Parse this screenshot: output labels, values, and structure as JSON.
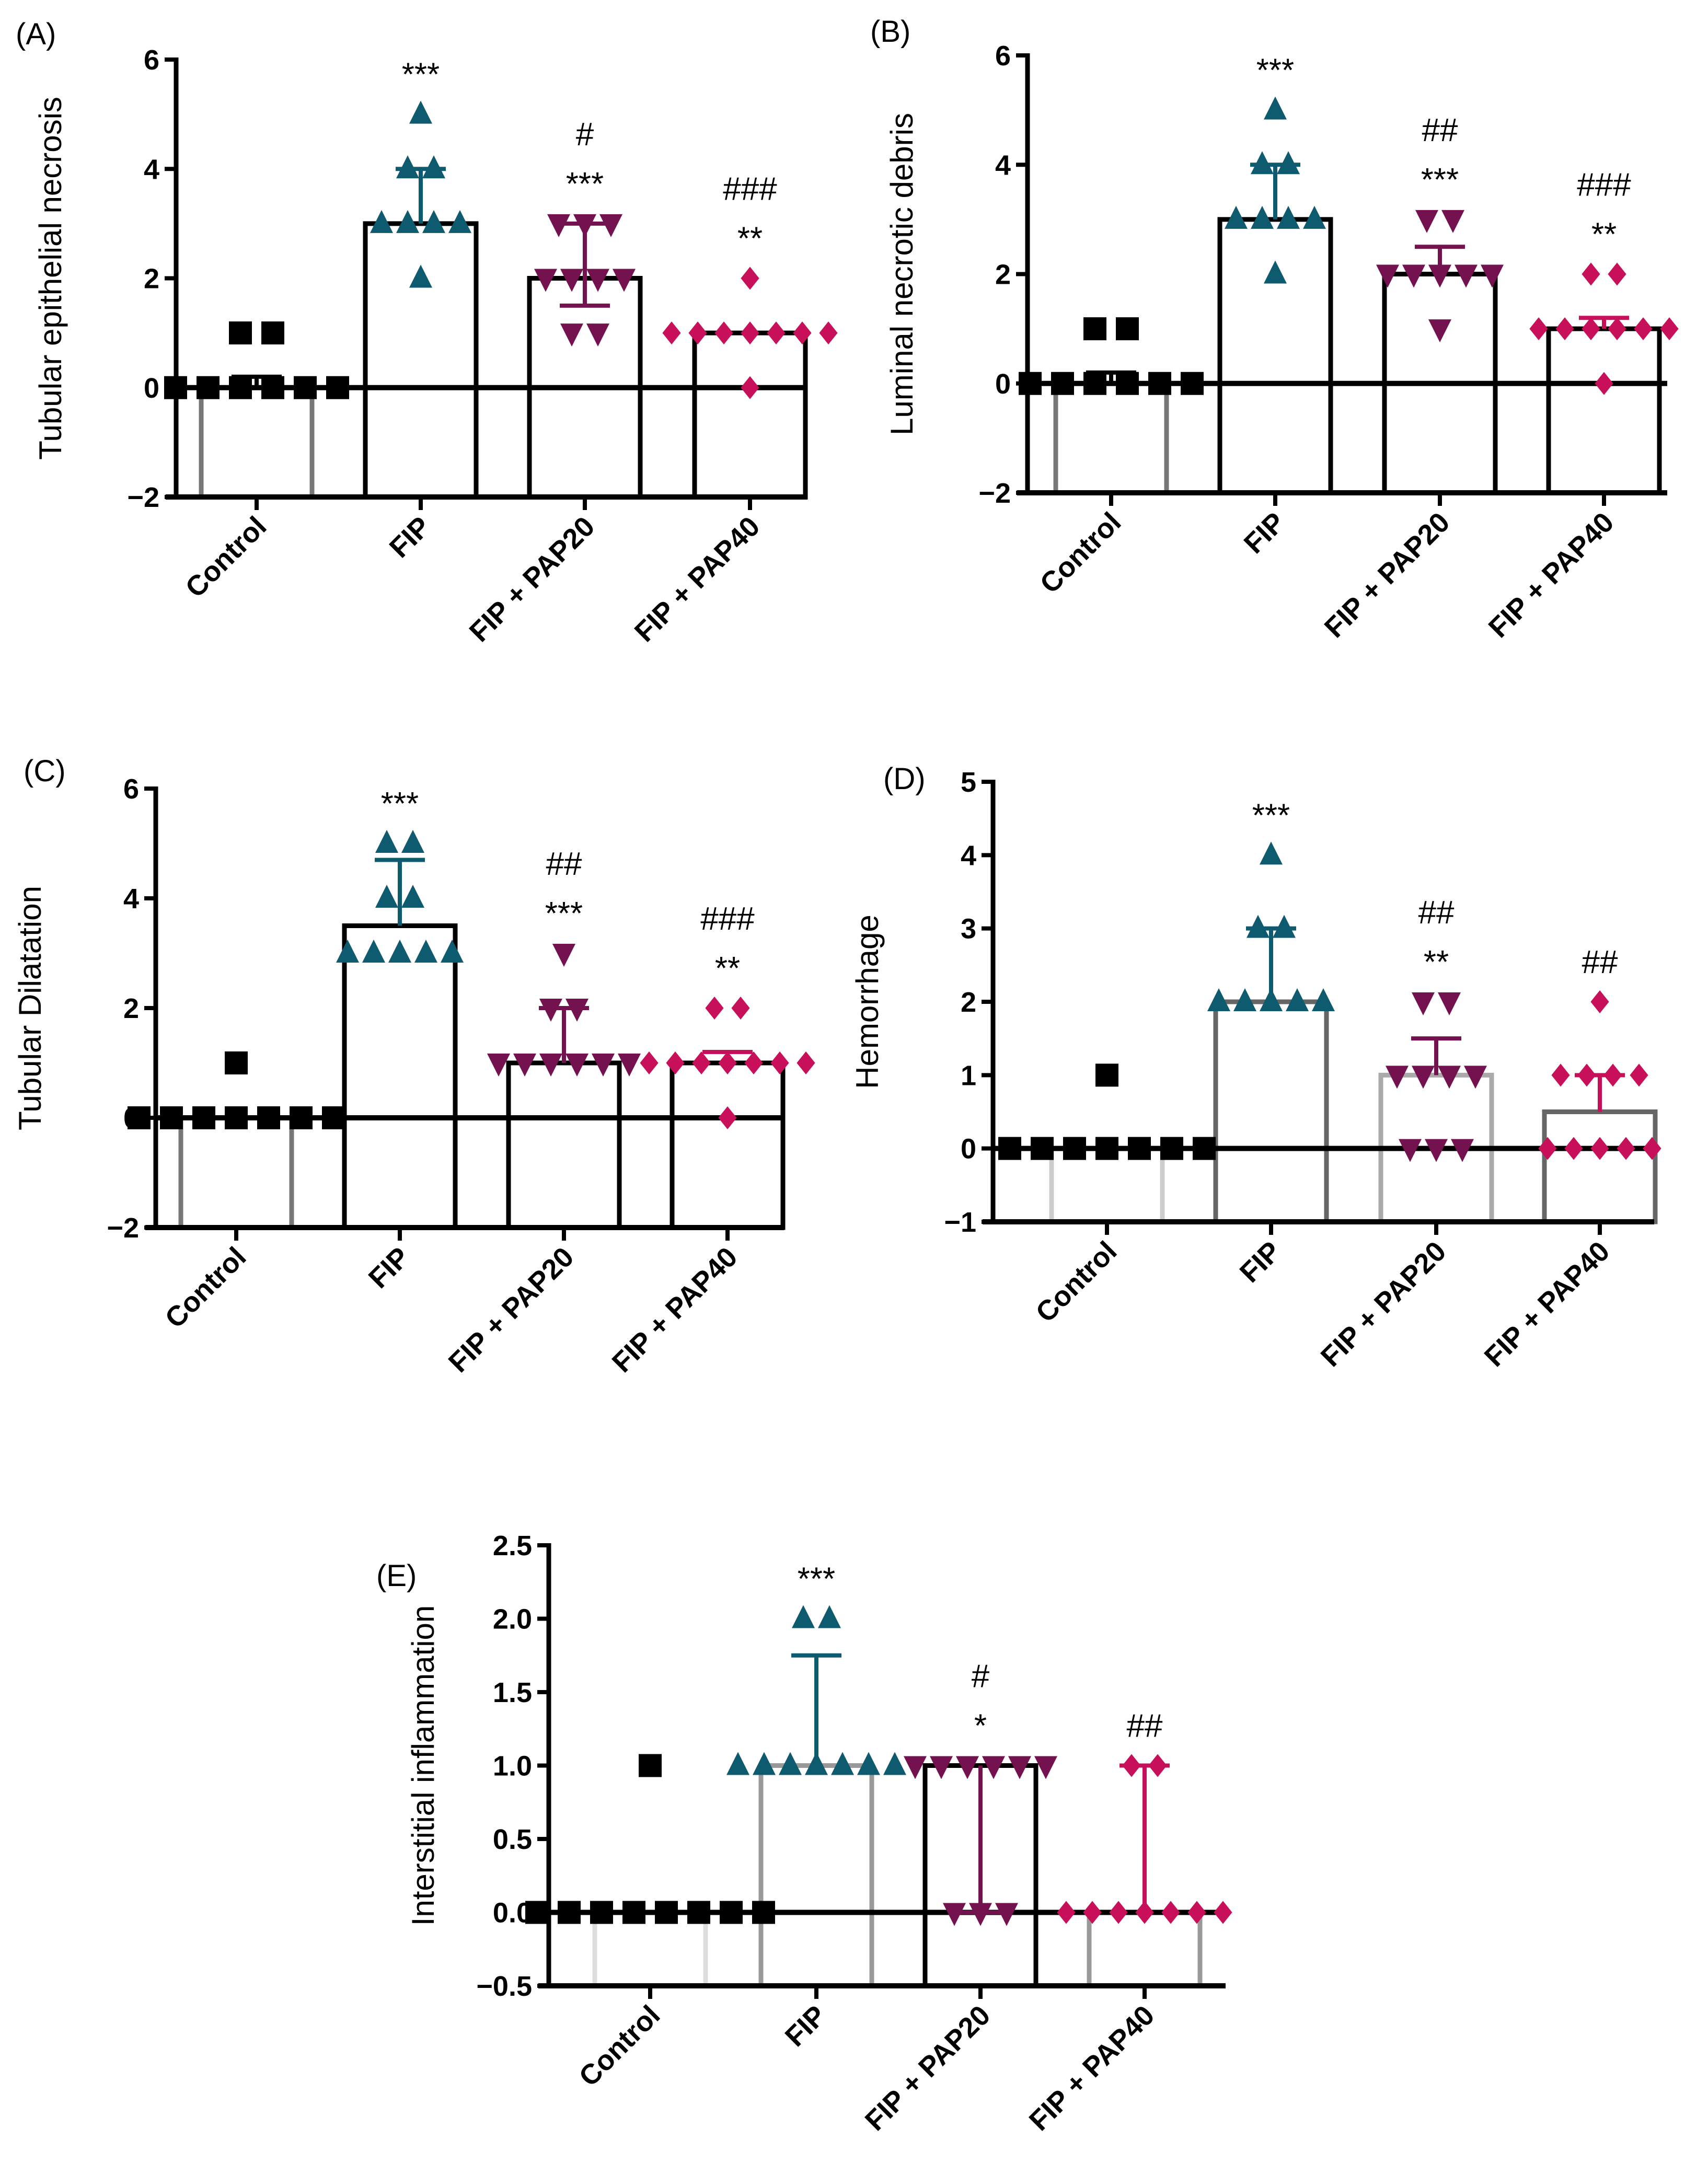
{
  "colors": {
    "Control": "#000000",
    "FIP": "#0e5a6e",
    "FIP + PAP20": "#741250",
    "FIP + PAP40": "#c8105a"
  },
  "markers": {
    "Control": "square",
    "FIP": "triangle-up",
    "FIP + PAP20": "triangle-down",
    "FIP + PAP40": "diamond"
  },
  "chart_data": [
    {
      "type": "bar",
      "panel": "(A)",
      "title": "",
      "xlabel": "",
      "ylabel": "Tubular epithelial necrosis",
      "ylim": [
        -2,
        6
      ],
      "yticks": [
        -2,
        0,
        2,
        4,
        6
      ],
      "ytick_labels": [
        "−2",
        "0",
        "2",
        "4",
        "6"
      ],
      "categories": [
        "Control",
        "FIP",
        "FIP + PAP20",
        "FIP + PAP40"
      ],
      "values": [
        0,
        3,
        2,
        1
      ],
      "error_low": [
        0,
        3,
        1.5,
        1
      ],
      "error_high": [
        0.2,
        4,
        3,
        1
      ],
      "points": [
        [
          1,
          1,
          0,
          0,
          0,
          0,
          0,
          0
        ],
        [
          5,
          4,
          4,
          3,
          3,
          3,
          3,
          2
        ],
        [
          3,
          3,
          3,
          2,
          2,
          2,
          2,
          1,
          1
        ],
        [
          2,
          1,
          1,
          1,
          1,
          1,
          1,
          1,
          0
        ]
      ],
      "annotations": [
        [
          ""
        ],
        [
          "***"
        ],
        [
          "#",
          "***"
        ],
        [
          "###",
          "**"
        ]
      ],
      "bar_outline": [
        "#777777",
        "#000000",
        "#000000",
        "#000000"
      ]
    },
    {
      "type": "bar",
      "panel": "(B)",
      "title": "",
      "xlabel": "",
      "ylabel": "Luminal necrotic debris",
      "ylim": [
        -2,
        6
      ],
      "yticks": [
        -2,
        0,
        2,
        4,
        6
      ],
      "ytick_labels": [
        "−2",
        "0",
        "2",
        "4",
        "6"
      ],
      "categories": [
        "Control",
        "FIP",
        "FIP + PAP20",
        "FIP + PAP40"
      ],
      "values": [
        0,
        3,
        2,
        1
      ],
      "error_low": [
        0,
        3,
        2,
        1
      ],
      "error_high": [
        0.2,
        4,
        2.5,
        1.2
      ],
      "points": [
        [
          1,
          1,
          0,
          0,
          0,
          0,
          0,
          0
        ],
        [
          5,
          4,
          4,
          3,
          3,
          3,
          3,
          2
        ],
        [
          3,
          3,
          2,
          2,
          2,
          2,
          2,
          1
        ],
        [
          2,
          2,
          1,
          1,
          1,
          1,
          1,
          1,
          0
        ]
      ],
      "annotations": [
        [
          ""
        ],
        [
          "***"
        ],
        [
          "##",
          "***"
        ],
        [
          "###",
          "**"
        ]
      ],
      "bar_outline": [
        "#777777",
        "#000000",
        "#000000",
        "#000000"
      ]
    },
    {
      "type": "bar",
      "panel": "(C)",
      "title": "",
      "xlabel": "",
      "ylabel": "Tubular Dilatation",
      "ylim": [
        -2,
        6
      ],
      "yticks": [
        -2,
        0,
        2,
        4,
        6
      ],
      "ytick_labels": [
        "−2",
        "0",
        "2",
        "4",
        "6"
      ],
      "categories": [
        "Control",
        "FIP",
        "FIP + PAP20",
        "FIP + PAP40"
      ],
      "values": [
        0,
        3.5,
        1,
        1
      ],
      "error_low": [
        0,
        3.5,
        1,
        1
      ],
      "error_high": [
        0,
        4.7,
        2,
        1.2
      ],
      "points": [
        [
          1,
          0,
          0,
          0,
          0,
          0,
          0,
          0
        ],
        [
          5,
          5,
          4,
          4,
          3,
          3,
          3,
          3,
          3
        ],
        [
          3,
          2,
          2,
          1,
          1,
          1,
          1,
          1,
          1
        ],
        [
          2,
          2,
          1,
          1,
          1,
          1,
          1,
          1,
          1,
          0
        ]
      ],
      "annotations": [
        [
          ""
        ],
        [
          "***"
        ],
        [
          "##",
          "***"
        ],
        [
          "###",
          "**"
        ]
      ],
      "bar_outline": [
        "#777777",
        "#000000",
        "#000000",
        "#000000"
      ]
    },
    {
      "type": "bar",
      "panel": "(D)",
      "title": "",
      "xlabel": "",
      "ylabel": "Hemorrhage",
      "ylim": [
        -1,
        5
      ],
      "yticks": [
        -1,
        0,
        1,
        2,
        3,
        4,
        5
      ],
      "ytick_labels": [
        "−1",
        "0",
        "1",
        "2",
        "3",
        "4",
        "5"
      ],
      "categories": [
        "Control",
        "FIP",
        "FIP + PAP20",
        "FIP + PAP40"
      ],
      "values": [
        0,
        2,
        1,
        0.5
      ],
      "error_low": [
        0,
        2,
        1,
        0.5
      ],
      "error_high": [
        0,
        3,
        1.5,
        1
      ],
      "points": [
        [
          1,
          0,
          0,
          0,
          0,
          0,
          0,
          0
        ],
        [
          4,
          3,
          3,
          2,
          2,
          2,
          2,
          2
        ],
        [
          2,
          2,
          1,
          1,
          1,
          1,
          0,
          0,
          0
        ],
        [
          2,
          1,
          1,
          1,
          1,
          0,
          0,
          0,
          0,
          0
        ]
      ],
      "annotations": [
        [
          ""
        ],
        [
          "***"
        ],
        [
          "##",
          "**"
        ],
        [
          "##"
        ]
      ],
      "bar_outline": [
        "#cccccc",
        "#666666",
        "#aaaaaa",
        "#666666"
      ]
    },
    {
      "type": "bar",
      "panel": "(E)",
      "title": "",
      "xlabel": "",
      "ylabel": "Interstitial inflammation",
      "ylim": [
        -0.5,
        2.5
      ],
      "yticks": [
        -0.5,
        0,
        0.5,
        1,
        1.5,
        2,
        2.5
      ],
      "ytick_labels": [
        "−0.5",
        "0.0",
        "0.5",
        "1.0",
        "1.5",
        "2.0",
        "2.5"
      ],
      "categories": [
        "Control",
        "FIP",
        "FIP + PAP20",
        "FIP + PAP40"
      ],
      "values": [
        0,
        1,
        1,
        0
      ],
      "error_low": [
        0,
        1,
        0,
        0
      ],
      "error_high": [
        0,
        1.75,
        1,
        1
      ],
      "points": [
        [
          1,
          0,
          0,
          0,
          0,
          0,
          0,
          0,
          0
        ],
        [
          2,
          2,
          1,
          1,
          1,
          1,
          1,
          1,
          1
        ],
        [
          1,
          1,
          1,
          1,
          1,
          1,
          0,
          0,
          0
        ],
        [
          1,
          1,
          0,
          0,
          0,
          0,
          0,
          0,
          0
        ]
      ],
      "annotations": [
        [
          ""
        ],
        [
          "***"
        ],
        [
          "#",
          "*"
        ],
        [
          "##"
        ]
      ],
      "bar_outline": [
        "#dddddd",
        "#999999",
        "#000000",
        "#999999"
      ]
    }
  ]
}
